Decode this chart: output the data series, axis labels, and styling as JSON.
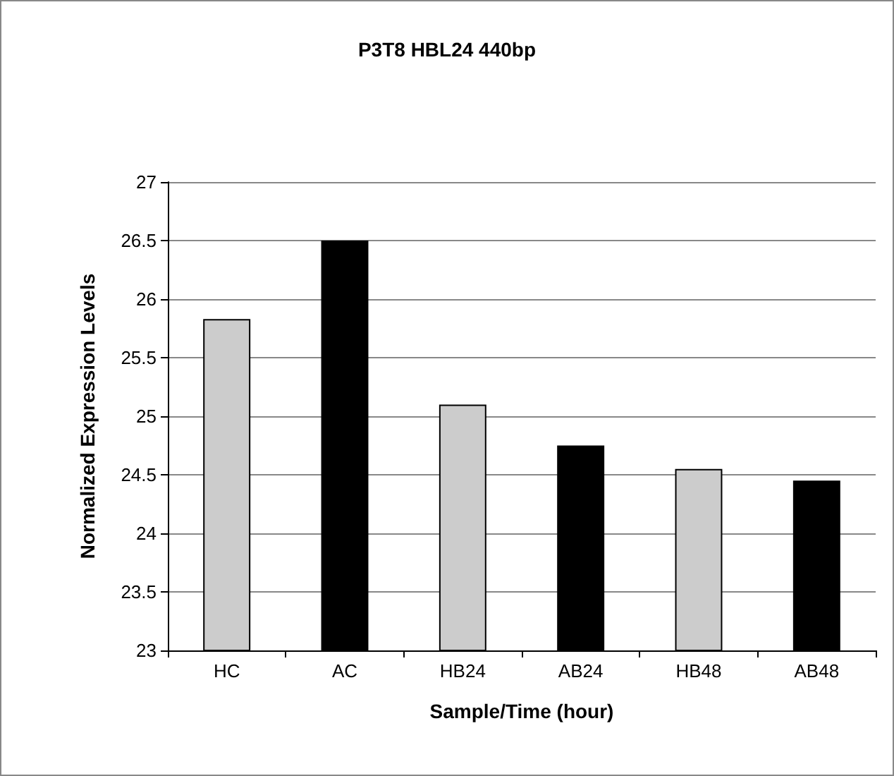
{
  "chart_data": {
    "type": "bar",
    "title": "P3T8 HBL24 440bp",
    "xlabel": "Sample/Time (hour)",
    "ylabel": "Normalized Expression Levels",
    "categories": [
      "HC",
      "AC",
      "HB24",
      "AB24",
      "HB48",
      "AB48"
    ],
    "values": [
      25.83,
      26.5,
      25.1,
      24.75,
      24.55,
      24.45
    ],
    "colors": [
      "#cccccc",
      "#000000",
      "#cccccc",
      "#000000",
      "#cccccc",
      "#000000"
    ],
    "ylim": [
      23,
      27
    ],
    "yticks": [
      23,
      23.5,
      24,
      24.5,
      25,
      25.5,
      26,
      26.5,
      27
    ],
    "grid": "y"
  }
}
